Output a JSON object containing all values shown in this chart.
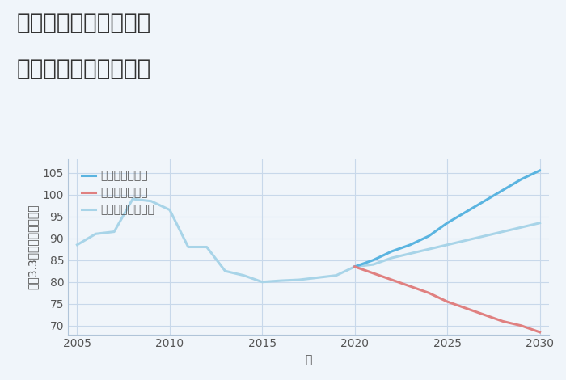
{
  "title_line1": "大阪府富田林市龍泉の",
  "title_line2": "中古戸建ての価格推移",
  "xlabel": "年",
  "ylabel": "坪（3.3㎡）単価（万円）",
  "background_color": "#f0f5fa",
  "plot_bg_color": "#f0f5fa",
  "grid_color": "#c8d8ea",
  "historical_years": [
    2005,
    2006,
    2007,
    2008,
    2009,
    2010,
    2011,
    2012,
    2013,
    2014,
    2015,
    2016,
    2017,
    2018,
    2019,
    2020
  ],
  "historical_values": [
    88.5,
    91.0,
    91.5,
    99.0,
    98.5,
    96.5,
    88.0,
    88.0,
    82.5,
    81.5,
    80.0,
    80.3,
    80.5,
    81.0,
    81.5,
    83.5
  ],
  "good_years": [
    2020,
    2021,
    2022,
    2023,
    2024,
    2025,
    2026,
    2027,
    2028,
    2029,
    2030
  ],
  "good_values": [
    83.5,
    85.0,
    87.0,
    88.5,
    90.5,
    93.5,
    96.0,
    98.5,
    101.0,
    103.5,
    105.5
  ],
  "bad_years": [
    2020,
    2021,
    2022,
    2023,
    2024,
    2025,
    2026,
    2027,
    2028,
    2029,
    2030
  ],
  "bad_values": [
    83.5,
    82.0,
    80.5,
    79.0,
    77.5,
    75.5,
    74.0,
    72.5,
    71.0,
    70.0,
    68.5
  ],
  "normal_years": [
    2020,
    2021,
    2022,
    2023,
    2024,
    2025,
    2026,
    2027,
    2028,
    2029,
    2030
  ],
  "normal_values": [
    83.5,
    84.0,
    85.5,
    86.5,
    87.5,
    88.5,
    89.5,
    90.5,
    91.5,
    92.5,
    93.5
  ],
  "good_color": "#5ab4e0",
  "bad_color": "#e08080",
  "normal_color": "#a8d4e8",
  "historical_color": "#a8d4e8",
  "legend_good": "グッドシナリオ",
  "legend_bad": "バッドシナリオ",
  "legend_normal": "ノーマルシナリオ",
  "ylim": [
    68,
    108
  ],
  "xlim": [
    2004.5,
    2030.5
  ],
  "yticks": [
    70,
    75,
    80,
    85,
    90,
    95,
    100,
    105
  ],
  "xticks": [
    2005,
    2010,
    2015,
    2020,
    2025,
    2030
  ],
  "title_fontsize": 20,
  "label_fontsize": 10,
  "tick_fontsize": 10,
  "legend_fontsize": 10,
  "line_width": 2.2
}
